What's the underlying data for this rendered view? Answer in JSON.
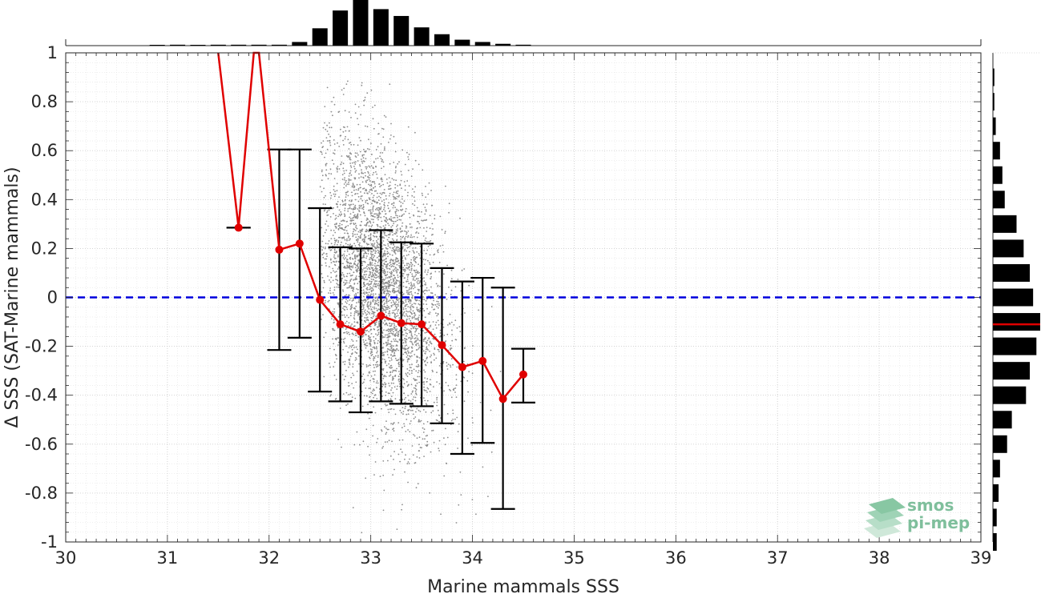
{
  "chart_data": {
    "type": "scatter",
    "xlabel": "Marine mammals SSS",
    "ylabel": "Δ SSS (SAT-Marine mammals)",
    "xlim": [
      30,
      39
    ],
    "ylim": [
      -1,
      1
    ],
    "x_ticks": [
      30,
      31,
      32,
      33,
      34,
      35,
      36,
      37,
      38,
      39
    ],
    "y_ticks": [
      -1,
      -0.8,
      -0.6,
      -0.4,
      -0.2,
      0,
      0.2,
      0.4,
      0.6,
      0.8,
      1
    ],
    "grid": "on (major and minor, dotted)",
    "zero_line": {
      "y": 0,
      "color": "#0000dd",
      "style": "dashed"
    },
    "series": [
      {
        "kind": "binned mean with error bars",
        "color": "#e00000",
        "x": [
          31.5,
          31.7,
          31.85,
          31.9,
          32.1,
          32.3,
          32.5,
          32.7,
          32.9,
          33.1,
          33.3,
          33.5,
          33.7,
          33.9,
          34.1,
          34.3,
          34.5
        ],
        "y": [
          1.0,
          0.285,
          1.0,
          1.0,
          0.195,
          0.22,
          -0.01,
          -0.11,
          -0.14,
          -0.075,
          -0.105,
          -0.11,
          -0.195,
          -0.285,
          -0.26,
          -0.415,
          -0.315
        ],
        "err_low": [
          null,
          0.285,
          null,
          null,
          -0.215,
          -0.165,
          -0.385,
          -0.425,
          -0.47,
          -0.425,
          -0.435,
          -0.445,
          -0.515,
          -0.64,
          -0.595,
          -0.865,
          -0.43
        ],
        "err_high": [
          null,
          0.285,
          null,
          null,
          0.605,
          0.605,
          0.365,
          0.205,
          0.2,
          0.275,
          0.225,
          0.22,
          0.12,
          0.065,
          0.08,
          0.04,
          -0.21
        ]
      }
    ],
    "scatter_cloud": {
      "color": "#8c8c8c",
      "x_range": [
        32.5,
        34.3
      ],
      "y_range": [
        -1,
        0.9
      ],
      "peak_x": 33.1,
      "peak_y": -0.08
    },
    "top_histogram": {
      "bin_centers": [
        30.9,
        31.1,
        31.3,
        31.5,
        31.7,
        31.9,
        32.1,
        32.3,
        32.5,
        32.7,
        32.9,
        33.1,
        33.3,
        33.5,
        33.7,
        33.9,
        34.1,
        34.3,
        34.5
      ],
      "relative_counts": [
        0.0,
        0.02,
        0.0,
        0.02,
        0.02,
        0.02,
        0.02,
        0.08,
        0.38,
        0.77,
        1.0,
        0.8,
        0.65,
        0.4,
        0.25,
        0.13,
        0.08,
        0.04,
        0.02
      ]
    },
    "right_histogram": {
      "bin_centers": [
        0.9,
        0.8,
        0.7,
        0.6,
        0.5,
        0.4,
        0.3,
        0.2,
        0.1,
        0.0,
        -0.1,
        -0.2,
        -0.3,
        -0.4,
        -0.5,
        -0.6,
        -0.7,
        -0.8,
        -0.9,
        -1.0
      ],
      "relative_counts": [
        0.03,
        0.03,
        0.06,
        0.15,
        0.2,
        0.25,
        0.5,
        0.65,
        0.78,
        0.85,
        1.0,
        0.92,
        0.78,
        0.7,
        0.4,
        0.3,
        0.15,
        0.12,
        0.08,
        0.08
      ],
      "median_line": {
        "y": -0.11,
        "color": "#e00000"
      }
    }
  },
  "logo": {
    "line1": "smos",
    "line2": "pi-mep"
  }
}
